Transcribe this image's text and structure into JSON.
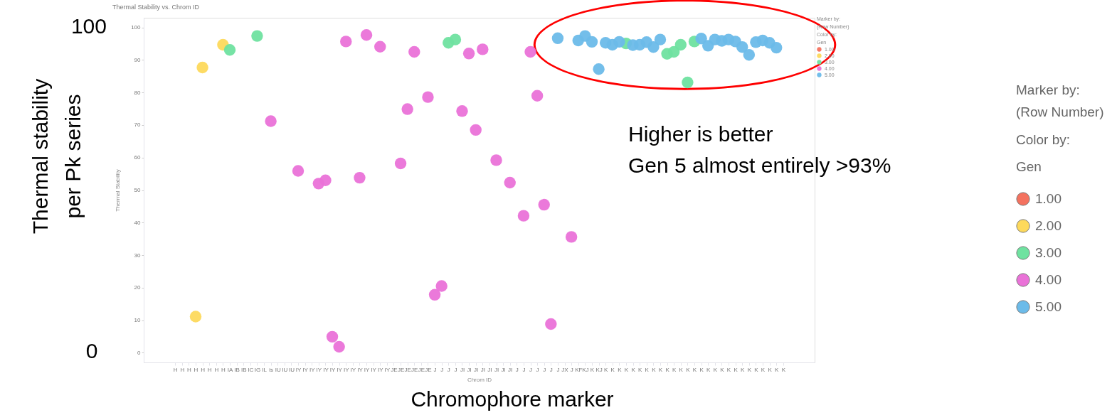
{
  "chart_data": {
    "type": "scatter",
    "title": "Thermal Stability vs. Chrom ID",
    "xlabel": "Chrom ID",
    "ylabel": "Thermal Stability",
    "legend_title": "Gen",
    "legend": "right",
    "marker": "circle",
    "grid": false,
    "categories": [
      "H",
      "H",
      "H",
      "H",
      "H",
      "H",
      "H",
      "H",
      "IA",
      "IB",
      "IB",
      "IC",
      "IG",
      "IL",
      "is",
      "IU",
      "IU",
      "IU",
      "IY",
      "IY",
      "IY",
      "IY",
      "IY",
      "IY",
      "IY",
      "IY",
      "IY",
      "IY",
      "IY",
      "IY",
      "IY",
      "IY",
      "JE",
      "JE",
      "JE",
      "JE",
      "JE",
      "JE",
      "J",
      "J",
      "J",
      "J",
      "JI",
      "JI",
      "JI",
      "JI",
      "JI",
      "JI",
      "JI",
      "JI",
      "J",
      "J",
      "J",
      "J",
      "J",
      "J",
      "J",
      "JX",
      "J",
      "KF",
      "KJ",
      "K",
      "KJ",
      "K",
      "K",
      "K",
      "K",
      "K",
      "K",
      "K",
      "K",
      "K",
      "K",
      "K",
      "K",
      "K",
      "K",
      "K",
      "K",
      "K",
      "K",
      "K",
      "K",
      "K",
      "K",
      "K",
      "K",
      "K",
      "K",
      "K"
    ],
    "ylim": [
      -3,
      103
    ],
    "yticks": [
      0,
      10,
      20,
      30,
      40,
      50,
      60,
      70,
      80,
      90,
      100
    ],
    "series": [
      {
        "name": "1.00",
        "color": "#f4725f",
        "values": [
          null,
          null,
          null,
          null,
          null,
          null,
          null,
          null,
          null,
          null,
          null,
          null,
          null,
          null,
          null,
          null,
          null,
          null,
          null,
          null,
          null,
          null,
          null,
          null,
          null,
          null,
          null,
          null,
          null,
          null,
          null,
          null,
          null,
          null,
          null,
          null,
          null,
          null,
          null,
          null,
          null,
          null,
          null,
          null,
          null,
          null,
          null,
          null,
          null,
          null,
          null,
          null,
          null,
          null,
          null,
          null,
          null,
          null,
          null,
          null,
          null,
          null,
          null,
          null,
          null,
          null,
          null,
          null,
          null,
          null,
          null,
          null,
          null,
          null,
          null,
          null,
          null,
          null,
          null,
          null,
          null,
          null,
          null,
          null,
          null,
          null,
          null,
          null,
          null,
          null
        ]
      },
      {
        "name": "2.00",
        "color": "#fdd95c",
        "values": [
          null,
          null,
          null,
          11.1,
          87.7,
          null,
          null,
          94.7,
          null,
          null,
          null,
          null,
          null,
          null,
          null,
          null,
          null,
          null,
          null,
          null,
          null,
          null,
          null,
          null,
          null,
          null,
          null,
          null,
          null,
          null,
          null,
          null,
          null,
          null,
          null,
          null,
          null,
          null,
          null,
          null,
          null,
          null,
          null,
          null,
          null,
          null,
          null,
          null,
          null,
          null,
          null,
          null,
          null,
          null,
          null,
          null,
          null,
          null,
          null,
          null,
          null,
          null,
          null,
          null,
          null,
          null,
          null,
          null,
          null,
          null,
          null,
          null,
          null,
          null,
          null,
          null,
          null,
          null,
          null,
          null,
          null,
          null,
          null,
          null,
          null,
          null,
          null,
          null,
          null,
          null
        ]
      },
      {
        "name": "3.00",
        "color": "#6fe2a0",
        "values": [
          null,
          null,
          null,
          null,
          null,
          null,
          null,
          null,
          93.1,
          null,
          null,
          null,
          97.4,
          null,
          null,
          null,
          null,
          null,
          null,
          null,
          null,
          null,
          null,
          null,
          null,
          null,
          null,
          null,
          null,
          null,
          null,
          null,
          null,
          null,
          null,
          null,
          null,
          null,
          null,
          null,
          95.3,
          96.3,
          null,
          null,
          null,
          null,
          null,
          null,
          null,
          null,
          null,
          null,
          null,
          null,
          null,
          null,
          null,
          null,
          null,
          null,
          null,
          null,
          null,
          null,
          null,
          null,
          95.1,
          null,
          null,
          null,
          null,
          null,
          91.9,
          92.5,
          94.7,
          83.1,
          95.7,
          null,
          null,
          null,
          null,
          null,
          null,
          null,
          null,
          null,
          null,
          null,
          null,
          null
        ]
      },
      {
        "name": "4.00",
        "color": "#ea72d8",
        "values": [
          null,
          null,
          null,
          null,
          null,
          null,
          null,
          null,
          null,
          null,
          null,
          null,
          null,
          null,
          71.2,
          null,
          null,
          null,
          55.9,
          null,
          null,
          52.0,
          53.0,
          4.9,
          1.8,
          95.7,
          null,
          53.8,
          97.7,
          null,
          94.1,
          null,
          null,
          58.2,
          74.9,
          92.5,
          null,
          78.6,
          17.8,
          20.5,
          null,
          null,
          74.3,
          92.0,
          68.5,
          93.3,
          null,
          59.2,
          null,
          52.3,
          null,
          42.1,
          92.5,
          79.0,
          45.5,
          8.8,
          null,
          null,
          35.6,
          null,
          null,
          null,
          null,
          null,
          null,
          null,
          null,
          null,
          null,
          null,
          null,
          null,
          null,
          null,
          null,
          null,
          null,
          null,
          null,
          null,
          null,
          null,
          null,
          null,
          null,
          null,
          null,
          null,
          null,
          null
        ]
      },
      {
        "name": "5.00",
        "color": "#6cbbe9",
        "values": [
          null,
          null,
          null,
          null,
          null,
          null,
          null,
          null,
          null,
          null,
          null,
          null,
          null,
          null,
          null,
          null,
          null,
          null,
          null,
          null,
          null,
          null,
          null,
          null,
          null,
          null,
          null,
          null,
          null,
          null,
          null,
          null,
          null,
          null,
          null,
          null,
          null,
          null,
          null,
          null,
          null,
          null,
          null,
          null,
          null,
          null,
          null,
          null,
          null,
          null,
          null,
          null,
          null,
          null,
          null,
          null,
          96.7,
          null,
          null,
          96.0,
          97.4,
          95.6,
          87.2,
          95.3,
          94.7,
          95.6,
          null,
          94.6,
          94.7,
          95.5,
          94.0,
          96.3,
          null,
          null,
          null,
          null,
          null,
          96.6,
          94.4,
          96.3,
          95.9,
          96.3,
          95.7,
          94.0,
          91.6,
          95.5,
          96.0,
          95.3,
          93.8,
          null
        ]
      }
    ],
    "annotations": [
      "Higher is better",
      "Gen 5 almost entirely >93%",
      "Chromophore marker",
      "Thermal stability\nper Pk series",
      "100",
      "0",
      "Marker by:",
      "(Row Number)",
      "Color by:"
    ]
  }
}
